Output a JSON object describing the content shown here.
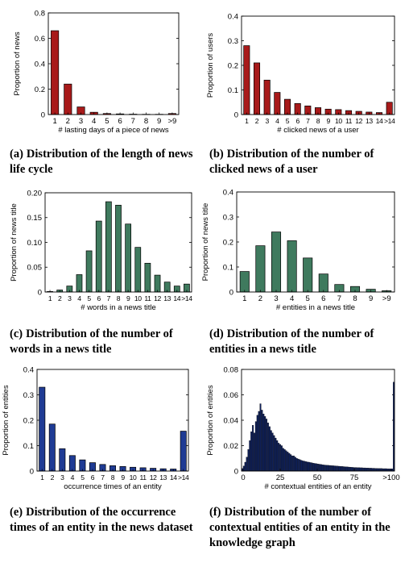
{
  "captions": [
    {
      "label": "(a)",
      "text": "Distribution of the length of news life cycle"
    },
    {
      "label": "(b)",
      "text": "Distribution of the number of clicked news of a user"
    },
    {
      "label": "(c)",
      "text": "Distribution of the number of words in a news title"
    },
    {
      "label": "(d)",
      "text": "Distribution of the number of entities in a news title"
    },
    {
      "label": "(e)",
      "text": "Distribution of the occurrence times of an entity in the news dataset"
    },
    {
      "label": "(f)",
      "text": "Distribution of the number of contextual entities of an entity in the knowledge graph"
    }
  ],
  "colors": {
    "red": "#a81a1a",
    "green": "#3f7a5e",
    "blue": "#1f3b94",
    "navy": "#0d1f5c"
  },
  "chart_data": [
    {
      "type": "bar",
      "xlabel": "# lasting days of a piece of news",
      "ylabel": "Proportion of news",
      "ylim": [
        0,
        0.8
      ],
      "yticks": [
        "0",
        "0.2",
        "0.4",
        "0.6",
        "0.8"
      ],
      "categories": [
        "1",
        "2",
        "3",
        "4",
        "5",
        "6",
        "7",
        "8",
        "9",
        ">9"
      ],
      "values": [
        0.66,
        0.24,
        0.06,
        0.018,
        0.008,
        0.005,
        0.003,
        0.002,
        0.002,
        0.008
      ],
      "color": "#a81a1a",
      "grid": false
    },
    {
      "type": "bar",
      "xlabel": "# clicked news of a user",
      "ylabel": "Proportion of users",
      "ylim": [
        0,
        0.4
      ],
      "yticks": [
        "0",
        "0.1",
        "0.2",
        "0.3",
        "0.4"
      ],
      "categories": [
        "1",
        "2",
        "3",
        "4",
        "5",
        "6",
        "7",
        "8",
        "9",
        "10",
        "11",
        "12",
        "13",
        "14",
        ">14"
      ],
      "values": [
        0.28,
        0.21,
        0.14,
        0.09,
        0.062,
        0.045,
        0.035,
        0.028,
        0.022,
        0.02,
        0.016,
        0.013,
        0.01,
        0.008,
        0.05
      ],
      "color": "#a81a1a",
      "grid": false
    },
    {
      "type": "bar",
      "xlabel": "# words in a news title",
      "ylabel": "Proportion of news title",
      "ylim": [
        0,
        0.2
      ],
      "yticks": [
        "0",
        "0.05",
        "0.10",
        "0.15",
        "0.20"
      ],
      "categories": [
        "1",
        "2",
        "3",
        "4",
        "5",
        "6",
        "7",
        "8",
        "9",
        "10",
        "11",
        "12",
        "13",
        "14",
        ">14"
      ],
      "values": [
        0.001,
        0.004,
        0.012,
        0.035,
        0.083,
        0.143,
        0.182,
        0.175,
        0.137,
        0.09,
        0.058,
        0.034,
        0.02,
        0.012,
        0.016
      ],
      "color": "#3f7a5e",
      "grid": false
    },
    {
      "type": "bar",
      "xlabel": "# entities in a news title",
      "ylabel": "Proportion of news title",
      "ylim": [
        0,
        0.4
      ],
      "yticks": [
        "0",
        "0.1",
        "0.2",
        "0.3",
        "0.4"
      ],
      "categories": [
        "1",
        "2",
        "3",
        "4",
        "5",
        "6",
        "7",
        "8",
        "9",
        ">9"
      ],
      "values": [
        0.082,
        0.185,
        0.24,
        0.205,
        0.136,
        0.072,
        0.03,
        0.022,
        0.011,
        0.005
      ],
      "color": "#3f7a5e",
      "grid": false
    },
    {
      "type": "bar",
      "xlabel": "occurrence times of an entity",
      "ylabel": "Proportion of entities",
      "ylim": [
        0,
        0.4
      ],
      "yticks": [
        "0",
        "0.1",
        "0.2",
        "0.3",
        "0.4"
      ],
      "categories": [
        "1",
        "2",
        "3",
        "4",
        "5",
        "6",
        "7",
        "8",
        "9",
        "10",
        "11",
        "12",
        "13",
        "14",
        ">14"
      ],
      "values": [
        0.33,
        0.185,
        0.088,
        0.061,
        0.044,
        0.033,
        0.026,
        0.021,
        0.018,
        0.015,
        0.013,
        0.011,
        0.009,
        0.008,
        0.157
      ],
      "color": "#1f3b94",
      "grid": false
    },
    {
      "type": "bar",
      "xlabel": "# contextual entities of an entity",
      "ylabel": "Proportion of entities",
      "ylim": [
        0,
        0.08
      ],
      "yticks": [
        "0",
        "0.02",
        "0.04",
        "0.06",
        "0.08"
      ],
      "xticks": [
        "0",
        "25",
        "50",
        "75",
        ">100"
      ],
      "values": [
        0.002,
        0.004,
        0.007,
        0.011,
        0.017,
        0.024,
        0.031,
        0.036,
        0.03,
        0.039,
        0.044,
        0.047,
        0.053,
        0.048,
        0.045,
        0.043,
        0.041,
        0.038,
        0.035,
        0.032,
        0.03,
        0.028,
        0.026,
        0.024,
        0.022,
        0.021,
        0.02,
        0.018,
        0.017,
        0.016,
        0.015,
        0.014,
        0.013,
        0.012,
        0.012,
        0.011,
        0.01,
        0.0095,
        0.009,
        0.0085,
        0.008,
        0.0078,
        0.0075,
        0.0072,
        0.007,
        0.0067,
        0.0065,
        0.0062,
        0.006,
        0.0058,
        0.0056,
        0.0054,
        0.0052,
        0.005,
        0.0048,
        0.0047,
        0.0046,
        0.0045,
        0.0044,
        0.0043,
        0.0042,
        0.0041,
        0.004,
        0.0039,
        0.0038,
        0.0037,
        0.0036,
        0.0035,
        0.0034,
        0.0033,
        0.0032,
        0.0031,
        0.003,
        0.0029,
        0.0028,
        0.0028,
        0.0027,
        0.0027,
        0.0026,
        0.0026,
        0.0025,
        0.0025,
        0.0024,
        0.0024,
        0.0023,
        0.0023,
        0.0022,
        0.0022,
        0.0021,
        0.0021,
        0.002,
        0.002,
        0.002,
        0.0019,
        0.0019,
        0.0019,
        0.0018,
        0.0018,
        0.0018,
        0.0018,
        0.07
      ],
      "color": "#0d1f5c",
      "grid": false
    }
  ]
}
